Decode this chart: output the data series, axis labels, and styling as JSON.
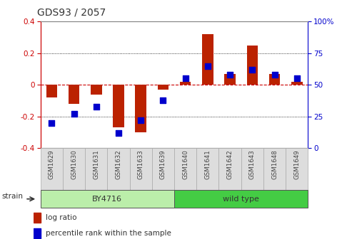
{
  "title": "GDS93 / 2057",
  "samples": [
    "GSM1629",
    "GSM1630",
    "GSM1631",
    "GSM1632",
    "GSM1633",
    "GSM1639",
    "GSM1640",
    "GSM1641",
    "GSM1642",
    "GSM1643",
    "GSM1648",
    "GSM1649"
  ],
  "log_ratio": [
    -0.08,
    -0.12,
    -0.06,
    -0.27,
    -0.3,
    -0.03,
    0.02,
    0.32,
    0.07,
    0.25,
    0.07,
    0.02
  ],
  "percentile": [
    20,
    27,
    33,
    12,
    22,
    38,
    55,
    65,
    58,
    62,
    58,
    55
  ],
  "ylim_left": [
    -0.4,
    0.4
  ],
  "ylim_right": [
    0,
    100
  ],
  "yticks_left": [
    -0.4,
    -0.2,
    0.0,
    0.2,
    0.4
  ],
  "yticks_right": [
    0,
    25,
    50,
    75,
    100
  ],
  "bar_color": "#bb2200",
  "dot_color": "#0000cc",
  "zero_line_color": "#cc0000",
  "grid_color": "#000000",
  "strain_groups": [
    {
      "label": "BY4716",
      "start": 0,
      "end": 5,
      "color": "#bbeeaa"
    },
    {
      "label": "wild type",
      "start": 6,
      "end": 11,
      "color": "#44cc44"
    }
  ],
  "strain_label": "strain",
  "legend_items": [
    {
      "label": "log ratio",
      "color": "#bb2200"
    },
    {
      "label": "percentile rank within the sample",
      "color": "#0000cc"
    }
  ],
  "bg_color": "#ffffff",
  "plot_bg": "#ffffff",
  "tick_color_left": "#cc0000",
  "tick_color_right": "#0000cc",
  "spine_color": "#000000",
  "sample_bg": "#dddddd",
  "sample_border": "#aaaaaa"
}
